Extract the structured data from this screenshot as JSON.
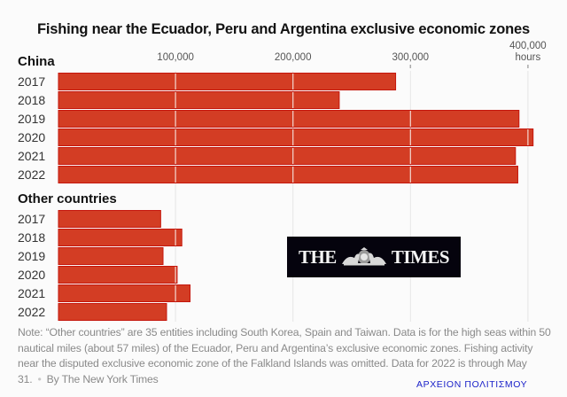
{
  "chart_data": {
    "type": "bar",
    "orientation": "horizontal",
    "title": "Fishing near the Ecuador, Peru and Argentina exclusive economic zones",
    "xlabel": "hours",
    "ylabel": "",
    "xlim": [
      0,
      400000
    ],
    "x_ticks": [
      {
        "value": 100000,
        "label": "100,000"
      },
      {
        "value": 200000,
        "label": "200,000"
      },
      {
        "value": 300000,
        "label": "300,000"
      },
      {
        "value": 400000,
        "label": "400,000",
        "unit": "hours"
      }
    ],
    "grid": true,
    "categories": [
      "2017",
      "2018",
      "2019",
      "2020",
      "2021",
      "2022"
    ],
    "series": [
      {
        "name": "China",
        "values": [
          287000,
          239000,
          392000,
          404000,
          389000,
          391000
        ]
      },
      {
        "name": "Other countries",
        "values": [
          87000,
          105000,
          89000,
          101000,
          112000,
          92000
        ]
      }
    ],
    "colors": {
      "bar": "#d33d24",
      "bar_outline": "#c5160c"
    }
  },
  "logo": {
    "left": "THE",
    "right": "TIMES",
    "crest_icon": "royal-crest-icon"
  },
  "note": {
    "text": "Note: “Other countries” are 35 entities including South Korea, Spain and Taiwan. Data is for the high seas within 50 nautical miles (about 57 miles) of the Ecuador, Peru and Argentina’s exclusive economic zones. Fishing activity near the disputed exclusive economic zone of the Falkland Islands was omitted. Data for 2022 is through May 31.",
    "separator": "•",
    "credit": "By The New York Times"
  },
  "watermark": "ΑΡΧΕΙΟΝ ΠΟΛΙΤΙΣΜΟΥ"
}
